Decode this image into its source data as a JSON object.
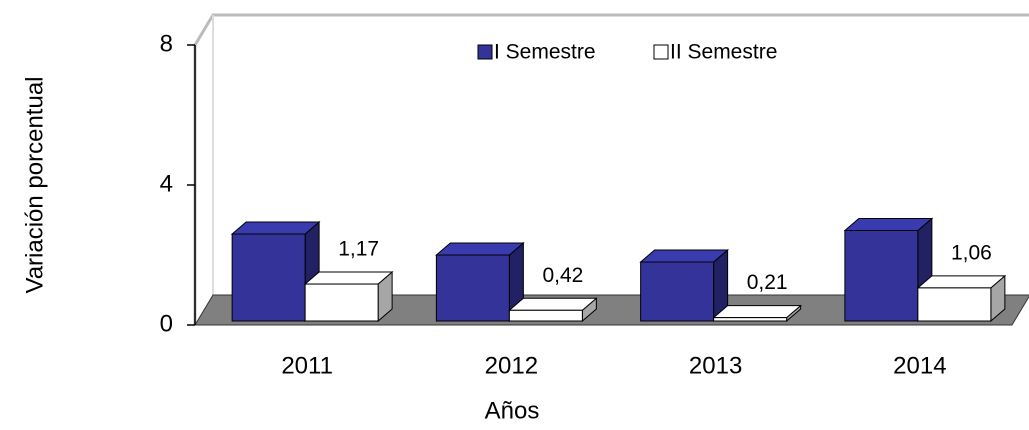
{
  "chart_data": {
    "type": "bar3d",
    "y_label": "Variación porcentual",
    "x_label": "Años",
    "categories": [
      "2011",
      "2012",
      "2013",
      "2014"
    ],
    "series": [
      {
        "name": "I Semestre",
        "color": "#333399",
        "values": [
          2.6,
          2.0,
          1.8,
          2.7
        ]
      },
      {
        "name": "II Semestre",
        "color": "#ffffff",
        "values": [
          1.17,
          0.42,
          0.21,
          1.06
        ],
        "value_labels": [
          "1,17",
          "0,42",
          "0,21",
          "1,06"
        ]
      }
    ],
    "ylim": [
      0,
      8
    ],
    "yticks": [
      0,
      4,
      8
    ]
  }
}
